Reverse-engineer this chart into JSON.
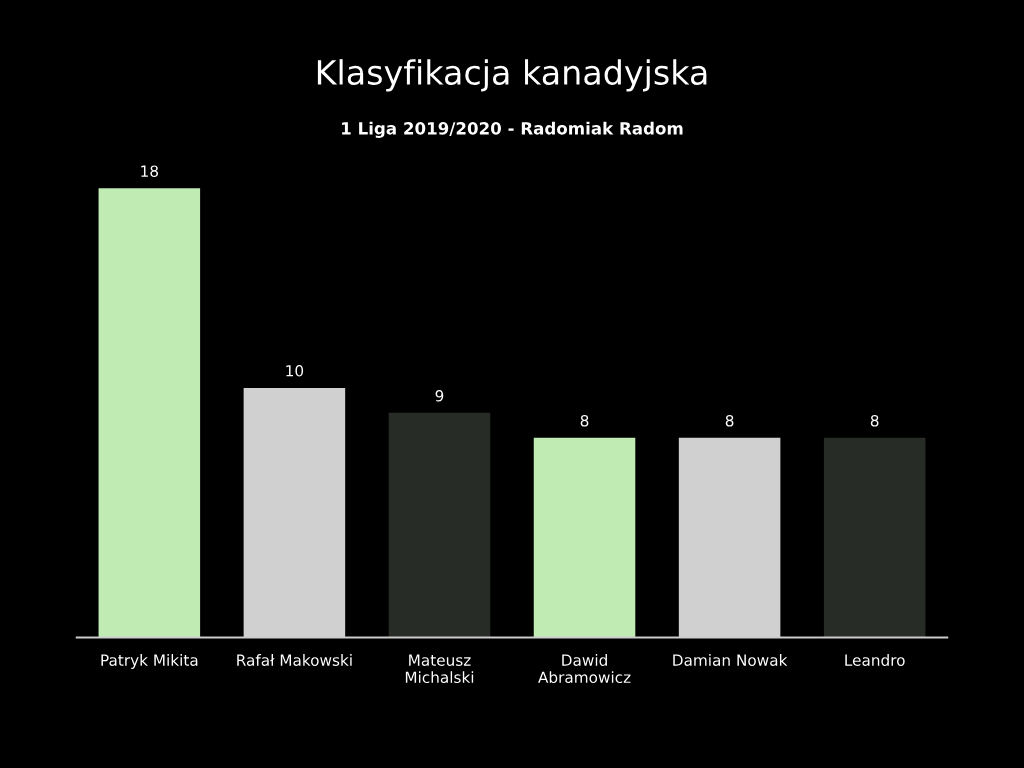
{
  "chart_data": {
    "type": "bar",
    "title": "Klasyfikacja kanadyjska",
    "subtitle": "1 Liga 2019/2020 - Radomiak Radom",
    "categories": [
      "Patryk Mikita",
      "Rafał Makowski",
      "Mateusz\nMichalski",
      "Dawid\nAbramowicz",
      "Damian Nowak",
      "Leandro"
    ],
    "values": [
      18,
      10,
      9,
      8,
      8,
      8
    ],
    "colors": [
      "#c0ecb4",
      "#d0d0d0",
      "#282c26",
      "#c0ecb4",
      "#d0d0d0",
      "#282c26"
    ],
    "data_labels": true,
    "grid": false,
    "legend": false
  }
}
